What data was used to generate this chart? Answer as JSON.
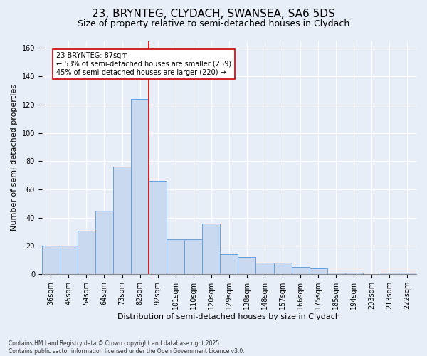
{
  "title": "23, BRYNTEG, CLYDACH, SWANSEA, SA6 5DS",
  "subtitle": "Size of property relative to semi-detached houses in Clydach",
  "xlabel": "Distribution of semi-detached houses by size in Clydach",
  "ylabel": "Number of semi-detached properties",
  "categories": [
    "36sqm",
    "45sqm",
    "54sqm",
    "64sqm",
    "73sqm",
    "82sqm",
    "92sqm",
    "101sqm",
    "110sqm",
    "120sqm",
    "129sqm",
    "138sqm",
    "148sqm",
    "157sqm",
    "166sqm",
    "175sqm",
    "185sqm",
    "194sqm",
    "203sqm",
    "213sqm",
    "222sqm"
  ],
  "values": [
    20,
    20,
    31,
    45,
    76,
    124,
    66,
    25,
    25,
    36,
    14,
    12,
    8,
    8,
    5,
    4,
    1,
    1,
    0,
    1,
    1
  ],
  "bar_color": "#c9d9f0",
  "bar_edge_color": "#6a9fd8",
  "vline_x": 5.5,
  "vline_color": "#cc0000",
  "annotation_text": "23 BRYNTEG: 87sqm\n← 53% of semi-detached houses are smaller (259)\n45% of semi-detached houses are larger (220) →",
  "annotation_box_color": "#ffffff",
  "annotation_box_edge": "#cc0000",
  "footnote": "Contains HM Land Registry data © Crown copyright and database right 2025.\nContains public sector information licensed under the Open Government Licence v3.0.",
  "ylim": [
    0,
    165
  ],
  "bg_color": "#e8eef8",
  "plot_bg_color": "#e8eef8",
  "title_fontsize": 11,
  "subtitle_fontsize": 9,
  "tick_fontsize": 7,
  "ylabel_fontsize": 8,
  "xlabel_fontsize": 8,
  "annotation_fontsize": 7,
  "footnote_fontsize": 5.5
}
